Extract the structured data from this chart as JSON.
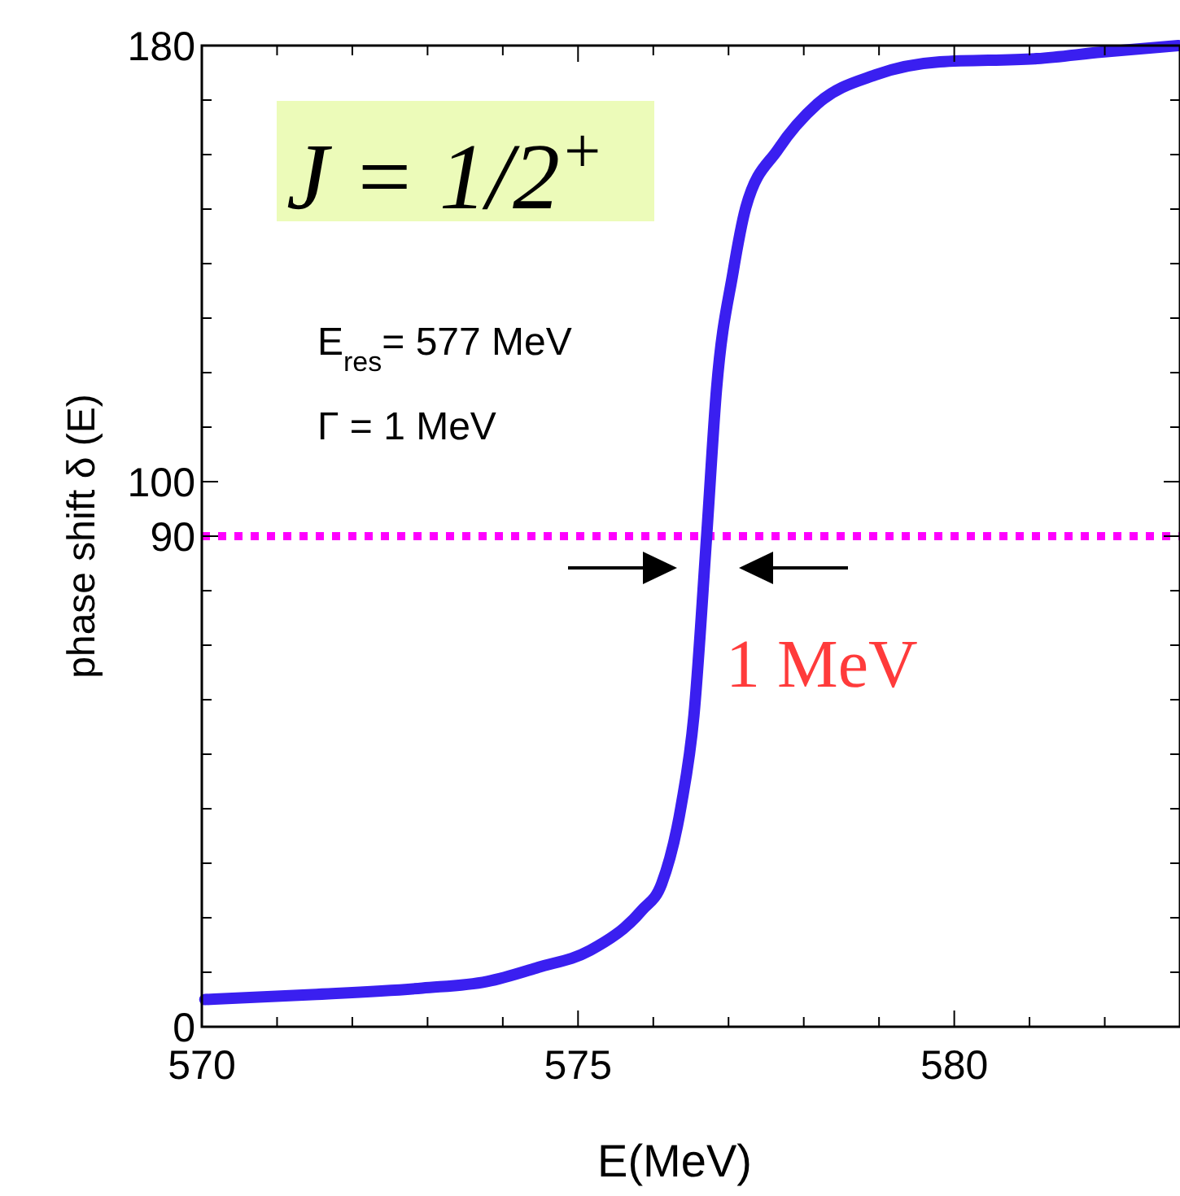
{
  "chart_data": {
    "type": "line",
    "xlabel": "E(MeV)",
    "ylabel": "phase shift δ (E)",
    "xlim": [
      570,
      583
    ],
    "ylim": [
      0,
      180
    ],
    "xticks": [
      570,
      {
        "value": 571,
        "label": null
      },
      {
        "value": 572,
        "label": null
      },
      {
        "value": 573,
        "label": null
      },
      {
        "value": 574,
        "label": null
      },
      575,
      {
        "value": 576,
        "label": null
      },
      {
        "value": 577,
        "label": null
      },
      {
        "value": 578,
        "label": null
      },
      {
        "value": 579,
        "label": null
      },
      580,
      {
        "value": 581,
        "label": null
      },
      {
        "value": 582,
        "label": null
      }
    ],
    "yticks": [
      0,
      {
        "value": 10,
        "label": null
      },
      {
        "value": 20,
        "label": null
      },
      {
        "value": 30,
        "label": null
      },
      {
        "value": 40,
        "label": null
      },
      {
        "value": 50,
        "label": null
      },
      {
        "value": 60,
        "label": null
      },
      {
        "value": 70,
        "label": null
      },
      {
        "value": 80,
        "label": null
      },
      90,
      100,
      {
        "value": 110,
        "label": null
      },
      {
        "value": 120,
        "label": null
      },
      {
        "value": 130,
        "label": null
      },
      {
        "value": 140,
        "label": null
      },
      {
        "value": 150,
        "label": null
      },
      {
        "value": 160,
        "label": null
      },
      {
        "value": 170,
        "label": null
      },
      180
    ],
    "grid": false,
    "line_style": "solid",
    "marker": "none",
    "series": [
      {
        "color": "#3a1ff0",
        "x": [
          570.04,
          571.46,
          572.93,
          573.79,
          574.47,
          575.16,
          575.85,
          576.11,
          576.37,
          576.54,
          576.71,
          576.84,
          577.06,
          577.23,
          577.66,
          578.18,
          578.95,
          579.81,
          581.1,
          581.96,
          582.98
        ],
        "values": [
          5,
          5.9,
          7.1,
          8.3,
          10.9,
          14,
          21.4,
          26.2,
          40.5,
          57.1,
          90.2,
          116.9,
          138.4,
          150.3,
          161,
          169.3,
          174.6,
          177,
          177.6,
          178.8,
          180
        ]
      }
    ],
    "ref_lines": [
      {
        "axis": "y",
        "value": 90,
        "color": "#ff00ff",
        "line_style": "dotted"
      }
    ],
    "annotations": [
      "J = 1/2$^{+}$",
      "E$_{res}$= 577 MeV",
      "Γ = 1 MeV",
      "1 MeV"
    ]
  }
}
